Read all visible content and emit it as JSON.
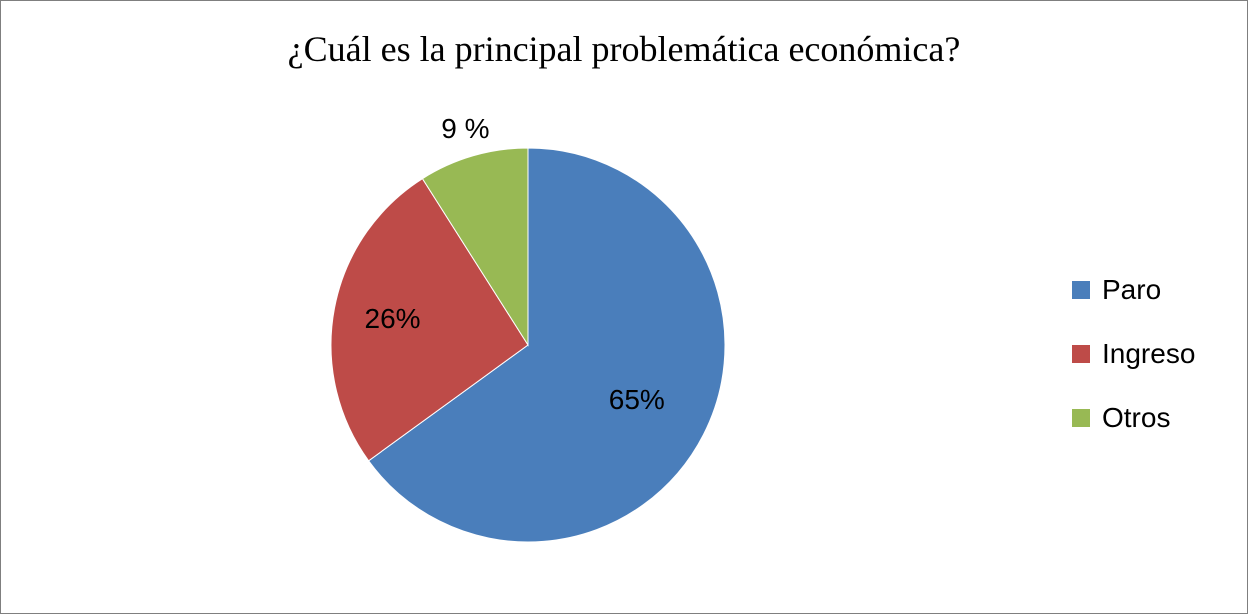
{
  "chart_data": {
    "type": "pie",
    "title": "¿Cuál es la principal problemática económica?",
    "categories": [
      "Paro",
      "Ingreso",
      "Otros"
    ],
    "values": [
      65,
      26,
      9
    ],
    "data_labels": [
      "65%",
      "26%",
      "9 %"
    ],
    "colors": [
      "#4a7ebb",
      "#be4b48",
      "#98b954"
    ],
    "legend_position": "right"
  }
}
